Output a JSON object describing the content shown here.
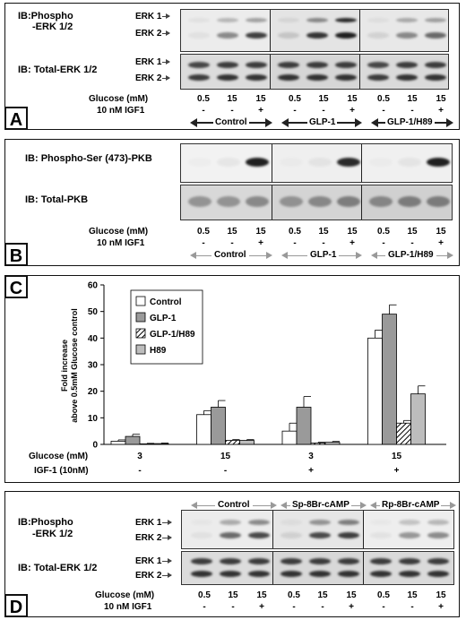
{
  "panelA": {
    "letter": "A",
    "ib_phospho": "IB:Phospho",
    "ib_phospho2": "-ERK 1/2",
    "ib_total": "IB: Total-ERK 1/2",
    "erk1": "ERK 1",
    "erk2": "ERK 2",
    "glucose_label": "Glucose (mM)",
    "igf_label": "10 nM IGF1",
    "glucose": [
      "0.5",
      "15",
      "15",
      "0.5",
      "15",
      "15",
      "0.5",
      "15",
      "15"
    ],
    "igf": [
      "-",
      "-",
      "+",
      "-",
      "-",
      "+",
      "-",
      "-",
      "+"
    ],
    "groups": [
      "Control",
      "GLP-1",
      "GLP-1/H89"
    ]
  },
  "panelB": {
    "letter": "B",
    "ib_phospho": "IB: Phospho-Ser (473)-PKB",
    "ib_total": "IB: Total-PKB",
    "glucose_label": "Glucose (mM)",
    "igf_label": "10 nM IGF1",
    "glucose": [
      "0.5",
      "15",
      "15",
      "0.5",
      "15",
      "15",
      "0.5",
      "15",
      "15"
    ],
    "igf": [
      "-",
      "-",
      "+",
      "-",
      "-",
      "+",
      "-",
      "-",
      "+"
    ],
    "groups": [
      "Control",
      "GLP-1",
      "GLP-1/H89"
    ]
  },
  "panelC": {
    "letter": "C",
    "glucose_label": "Glucose (mM)",
    "igf_label": "IGF-1 (10nM)",
    "glucose": [
      "3",
      "15",
      "3",
      "15"
    ],
    "igf": [
      "-",
      "-",
      "+",
      "+"
    ],
    "ylabel_line1": "Fold increase",
    "ylabel_line2": "above 0.5mM Glucose control"
  },
  "chart_data": {
    "type": "bar",
    "xlabel": "",
    "ylabel": "Fold increase above 0.5mM Glucose control",
    "ylim": [
      0,
      60
    ],
    "yticks": [
      0,
      10,
      20,
      30,
      40,
      50,
      60
    ],
    "categories": [
      "3 / -",
      "15 / -",
      "3 / +",
      "15 / +"
    ],
    "legend_position": "top-left",
    "grid": false,
    "series": [
      {
        "name": "Control",
        "values": [
          1.2,
          11.2,
          5.0,
          40.0
        ],
        "errors": [
          0.5,
          1.5,
          3.0,
          3.0
        ],
        "color": "#ffffff",
        "pattern": "none"
      },
      {
        "name": "GLP-1",
        "values": [
          3.0,
          14.0,
          14.0,
          49.0
        ],
        "errors": [
          0.8,
          2.5,
          4.0,
          3.5
        ],
        "color": "#9a9a9a",
        "pattern": "none"
      },
      {
        "name": "GLP-1/H89",
        "values": [
          0.2,
          1.5,
          0.5,
          8.0
        ],
        "errors": [
          0.2,
          0.3,
          0.3,
          1.0
        ],
        "color": "#ffffff",
        "pattern": "hatch"
      },
      {
        "name": "H89",
        "values": [
          0.3,
          1.5,
          0.8,
          19.0
        ],
        "errors": [
          0.2,
          0.3,
          0.3,
          3.0
        ],
        "color": "#bdbdbd",
        "pattern": "none"
      }
    ]
  },
  "panelD": {
    "letter": "D",
    "ib_phospho": "IB:Phospho",
    "ib_phospho2": "-ERK 1/2",
    "ib_total": "IB: Total-ERK 1/2",
    "erk1": "ERK 1",
    "erk2": "ERK 2",
    "glucose_label": "Glucose (mM)",
    "igf_label": "10 nM IGF1",
    "glucose": [
      "0.5",
      "15",
      "15",
      "0.5",
      "15",
      "15",
      "0.5",
      "15",
      "15"
    ],
    "igf": [
      "-",
      "-",
      "+",
      "-",
      "-",
      "+",
      "-",
      "-",
      "+"
    ],
    "groups": [
      "Control",
      "Sp-8Br-cAMP",
      "Rp-8Br-cAMP"
    ]
  },
  "colors": {
    "frame": "#111111",
    "blot_bg": "#e6e6e6",
    "band": "#1a1a1a",
    "grey_arrow": "#999999"
  }
}
